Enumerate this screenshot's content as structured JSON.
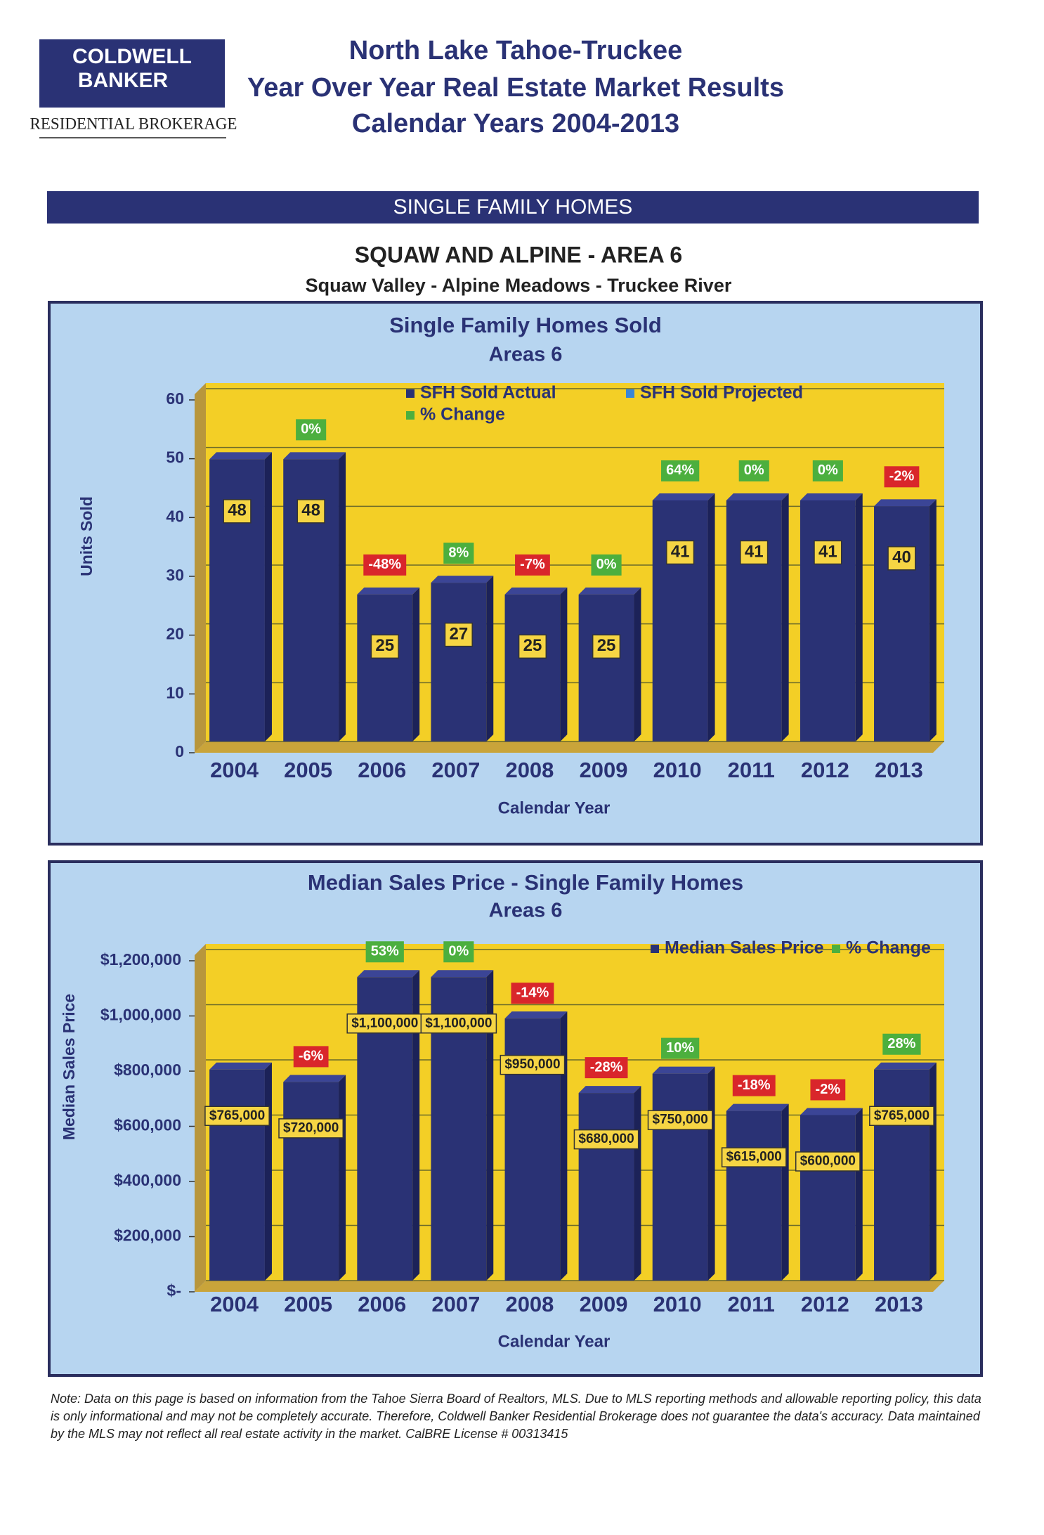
{
  "header": {
    "logo_line1": "COLDWELL",
    "logo_line2": "BANKER",
    "logo_sub": "RESIDENTIAL BROKERAGE",
    "title_lines": [
      "North Lake Tahoe-Truckee",
      "Year Over Year Real Estate Market Results",
      "Calendar Years 2004-2013"
    ]
  },
  "section": "SINGLE FAMILY HOMES",
  "area_title": "SQUAW AND ALPINE - AREA 6",
  "area_subtitle": "Squaw Valley - Alpine Meadows - Truckee River",
  "chart_data": [
    {
      "type": "bar",
      "title": "Single Family Homes Sold",
      "subtitle": "Areas 6",
      "x_label": "Calendar Year",
      "y_label": "Units Sold",
      "categories": [
        "2004",
        "2005",
        "2006",
        "2007",
        "2008",
        "2009",
        "2010",
        "2011",
        "2012",
        "2013"
      ],
      "series": [
        {
          "name": "SFH Sold Actual",
          "color": "#2a3275",
          "values": [
            48,
            48,
            25,
            27,
            25,
            25,
            41,
            41,
            41,
            40
          ]
        },
        {
          "name": "SFH Sold Projected",
          "color": "#3a86d6",
          "values": [
            null,
            null,
            null,
            null,
            null,
            null,
            null,
            null,
            null,
            null
          ]
        },
        {
          "name": "% Change",
          "color": "#4caf3e",
          "negative_color": "#d9262b",
          "values": [
            null,
            0,
            -48,
            8,
            -7,
            0,
            64,
            0,
            0,
            -2
          ],
          "value_labels": [
            null,
            "0%",
            "-48%",
            "8%",
            "-7%",
            "0%",
            "64%",
            "0%",
            "0%",
            "-2%"
          ]
        }
      ],
      "ylim": [
        0,
        60
      ],
      "yticks": [
        0,
        10,
        20,
        30,
        40,
        50,
        60
      ],
      "grid": true
    },
    {
      "type": "bar",
      "title": "Median Sales Price - Single Family Homes",
      "subtitle": "Areas 6",
      "x_label": "Calendar Year",
      "y_label": "Median Sales Price",
      "categories": [
        "2004",
        "2005",
        "2006",
        "2007",
        "2008",
        "2009",
        "2010",
        "2011",
        "2012",
        "2013"
      ],
      "series": [
        {
          "name": "Median Sales Price",
          "color": "#2a3275",
          "values": [
            765000,
            720000,
            1100000,
            1100000,
            950000,
            680000,
            750000,
            615000,
            600000,
            765000
          ],
          "value_labels": [
            "$765,000",
            "$720,000",
            "$1,100,000",
            "$1,100,000",
            "$950,000",
            "$680,000",
            "$750,000",
            "$615,000",
            "$600,000",
            "$765,000"
          ]
        },
        {
          "name": "% Change",
          "color": "#4caf3e",
          "negative_color": "#d9262b",
          "values": [
            null,
            -6,
            53,
            0,
            -14,
            -28,
            10,
            -18,
            -2,
            28
          ],
          "value_labels": [
            null,
            "-6%",
            "53%",
            "0%",
            "-14%",
            "-28%",
            "10%",
            "-18%",
            "-2%",
            "28%"
          ]
        }
      ],
      "ylim": [
        0,
        1200000
      ],
      "yticks": [
        {
          "value": 0,
          "label": "$-"
        },
        {
          "value": 200000,
          "label": "$200,000"
        },
        {
          "value": 400000,
          "label": "$400,000"
        },
        {
          "value": 600000,
          "label": "$600,000"
        },
        {
          "value": 800000,
          "label": "$800,000"
        },
        {
          "value": 1000000,
          "label": "$1,000,000"
        },
        {
          "value": 1200000,
          "label": "$1,200,000"
        }
      ],
      "grid": true
    }
  ],
  "note": "Note: Data on this page is based on information from the Tahoe Sierra Board of Realtors, MLS.  Due to MLS reporting methods and allowable reporting policy, this data is only informational and may not be completely accurate.  Therefore, Coldwell Banker Residential Brokerage does not guarantee the data's accuracy.  Data maintained by the MLS may not reflect all real estate activity in the market.  CalBRE License # 00313415"
}
